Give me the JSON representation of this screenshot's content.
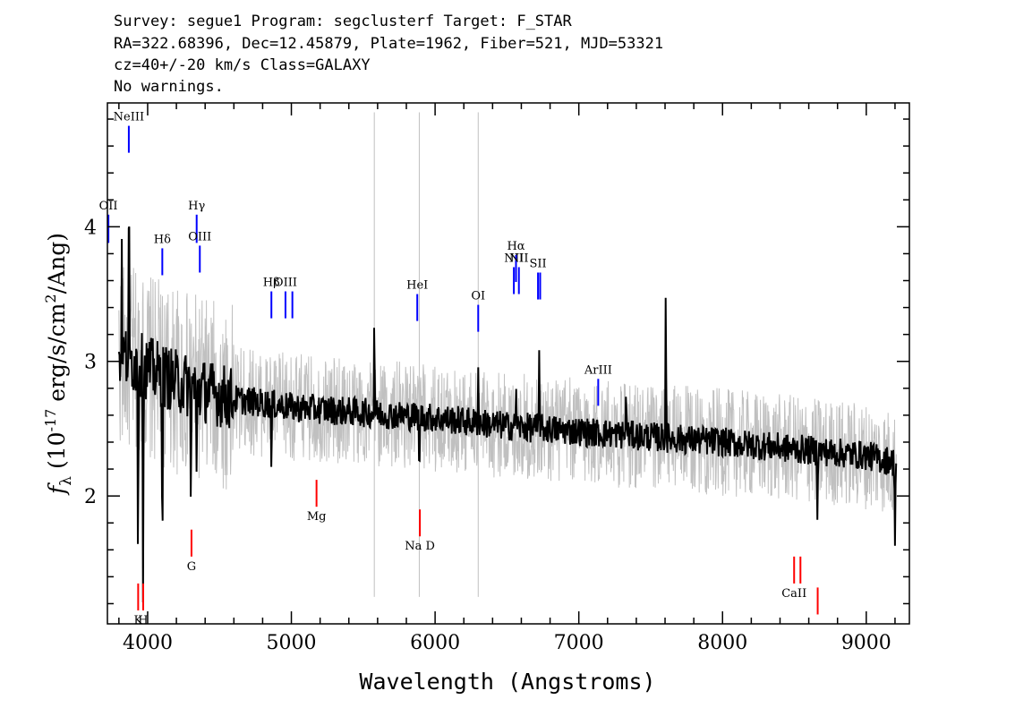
{
  "header": {
    "line1": "Survey: segue1 Program: segclusterf Target: F_STAR",
    "line2": "RA=322.68396, Dec=12.45879, Plate=1962, Fiber=521, MJD=53321",
    "line3": "cz=40+/-20 km/s Class=GALAXY",
    "line4": "No warnings."
  },
  "chart_data": {
    "type": "line",
    "xlabel": "Wavelength (Angstroms)",
    "ylabel": "f_λ (10^-17 erg/s/cm^2/Ang)",
    "ylabel_prefix": "f",
    "ylabel_sub": "λ",
    "ylabel_open": " (10",
    "ylabel_exp": "-17",
    "ylabel_mid": " erg/s/cm",
    "ylabel_exp2": "2",
    "ylabel_close": "/Ang)",
    "xlim": [
      3720,
      9300
    ],
    "ylim": [
      1.05,
      4.92
    ],
    "x_ticks": [
      4000,
      5000,
      6000,
      7000,
      8000,
      9000
    ],
    "x_tick_labels": [
      "4000",
      "5000",
      "6000",
      "7000",
      "8000",
      "9000"
    ],
    "y_ticks": [
      2,
      3,
      4
    ],
    "y_tick_labels": [
      "2",
      "3",
      "4"
    ],
    "grid": false,
    "colors": {
      "flux": "#000000",
      "noise": "#c0c0c0",
      "emission": "#0000ff",
      "absorption": "#ff0000"
    },
    "continuum_anchors": {
      "x": [
        3800,
        3900,
        4000,
        4200,
        4400,
        4600,
        5000,
        5500,
        6000,
        6500,
        7000,
        7500,
        8000,
        8500,
        9000,
        9200
      ],
      "y": [
        3.05,
        3.0,
        2.95,
        2.85,
        2.78,
        2.72,
        2.66,
        2.62,
        2.58,
        2.52,
        2.48,
        2.44,
        2.4,
        2.35,
        2.3,
        2.25
      ]
    },
    "series": [
      {
        "role": "flux",
        "features": [
          {
            "x": 3820,
            "y": 3.68
          },
          {
            "x": 3870,
            "y": 4.33
          },
          {
            "x": 3933,
            "y": 1.5
          },
          {
            "x": 3968,
            "y": 1.45
          },
          {
            "x": 4102,
            "y": 1.45
          },
          {
            "x": 4300,
            "y": 1.95
          },
          {
            "x": 4340,
            "y": 2.05
          },
          {
            "x": 4861,
            "y": 2.05
          },
          {
            "x": 5577,
            "y": 3.45
          },
          {
            "x": 5890,
            "y": 1.95
          },
          {
            "x": 6300,
            "y": 2.95
          },
          {
            "x": 6563,
            "y": 3.4
          },
          {
            "x": 6563,
            "y": 2.05
          },
          {
            "x": 6725,
            "y": 3.2
          },
          {
            "x": 7330,
            "y": 2.85
          },
          {
            "x": 7605,
            "y": 3.73
          },
          {
            "x": 8660,
            "y": 1.9
          },
          {
            "x": 9200,
            "y": 1.6
          }
        ]
      },
      {
        "role": "noise",
        "features": []
      }
    ],
    "emission_lines": [
      {
        "label": "NeIII",
        "x": 3869,
        "y_top": 4.75,
        "y_bottom": 4.55
      },
      {
        "label": "OII",
        "x": 3727,
        "y_top": 4.09,
        "y_bottom": 3.88
      },
      {
        "label": "Hδ",
        "x": 4102,
        "y_top": 3.84,
        "y_bottom": 3.64
      },
      {
        "label": "Hγ",
        "x": 4341,
        "y_top": 4.09,
        "y_bottom": 3.88
      },
      {
        "label": "OIII",
        "x": 4363,
        "y_top": 3.86,
        "y_bottom": 3.66
      },
      {
        "label": "Hβ",
        "x": 4861,
        "y_top": 3.52,
        "y_bottom": 3.32
      },
      {
        "label": "OIII",
        "x": 4959,
        "y_top": 3.52,
        "y_bottom": 3.32
      },
      {
        "label": "",
        "x": 5007,
        "y_top": 3.52,
        "y_bottom": 3.32
      },
      {
        "label": "HeI",
        "x": 5876,
        "y_top": 3.5,
        "y_bottom": 3.3
      },
      {
        "label": "OI",
        "x": 6300,
        "y_top": 3.42,
        "y_bottom": 3.22
      },
      {
        "label": "NII",
        "x": 6548,
        "y_top": 3.7,
        "y_bottom": 3.5
      },
      {
        "label": "Hα",
        "x": 6563,
        "y_top": 3.79,
        "y_bottom": 3.59
      },
      {
        "label": "NII",
        "x": 6583,
        "y_top": 3.7,
        "y_bottom": 3.5
      },
      {
        "label": "SII",
        "x": 6716,
        "y_top": 3.66,
        "y_bottom": 3.46
      },
      {
        "label": "",
        "x": 6731,
        "y_top": 3.66,
        "y_bottom": 3.46
      },
      {
        "label": "ArIII",
        "x": 7135,
        "y_top": 2.87,
        "y_bottom": 2.67
      }
    ],
    "absorption_lines": [
      {
        "label": "K",
        "x": 3934,
        "y_top": 1.35,
        "y_bottom": 1.15
      },
      {
        "label": "H",
        "x": 3969,
        "y_top": 1.35,
        "y_bottom": 1.15
      },
      {
        "label": "G",
        "x": 4305,
        "y_top": 1.75,
        "y_bottom": 1.55
      },
      {
        "label": "Mg",
        "x": 5175,
        "y_top": 2.12,
        "y_bottom": 1.92
      },
      {
        "label": "Na D",
        "x": 5894,
        "y_top": 1.9,
        "y_bottom": 1.7
      },
      {
        "label": "CaII",
        "x": 8498,
        "y_top": 1.55,
        "y_bottom": 1.35
      },
      {
        "label": "",
        "x": 8542,
        "y_top": 1.55,
        "y_bottom": 1.35
      },
      {
        "label": "",
        "x": 8662,
        "y_top": 1.32,
        "y_bottom": 1.12
      }
    ]
  }
}
